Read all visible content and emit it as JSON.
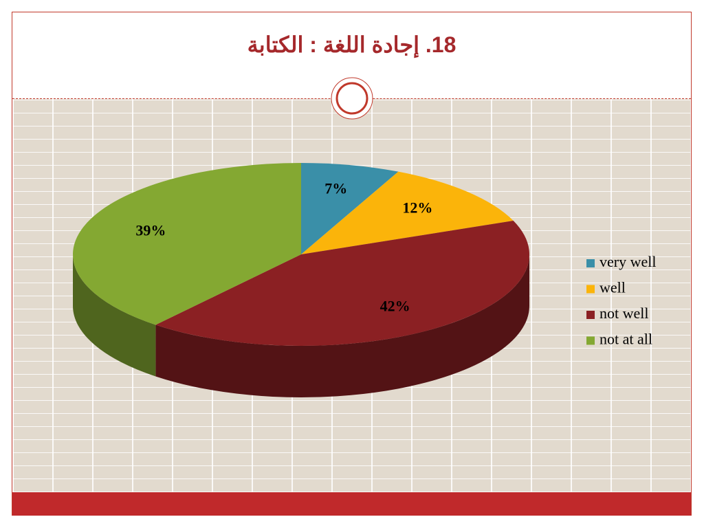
{
  "chart_data": {
    "type": "pie3d",
    "title": "18. إجادة اللغة : الكتابة",
    "categories": [
      "very well",
      "well",
      "not well",
      "not at all"
    ],
    "values": [
      7,
      12,
      42,
      39
    ],
    "value_labels": [
      "7%",
      "12%",
      "42%",
      "39%"
    ],
    "colors": [
      "#3a8fa8",
      "#fbb40a",
      "#8b2023",
      "#84a832"
    ],
    "legend": "right"
  }
}
